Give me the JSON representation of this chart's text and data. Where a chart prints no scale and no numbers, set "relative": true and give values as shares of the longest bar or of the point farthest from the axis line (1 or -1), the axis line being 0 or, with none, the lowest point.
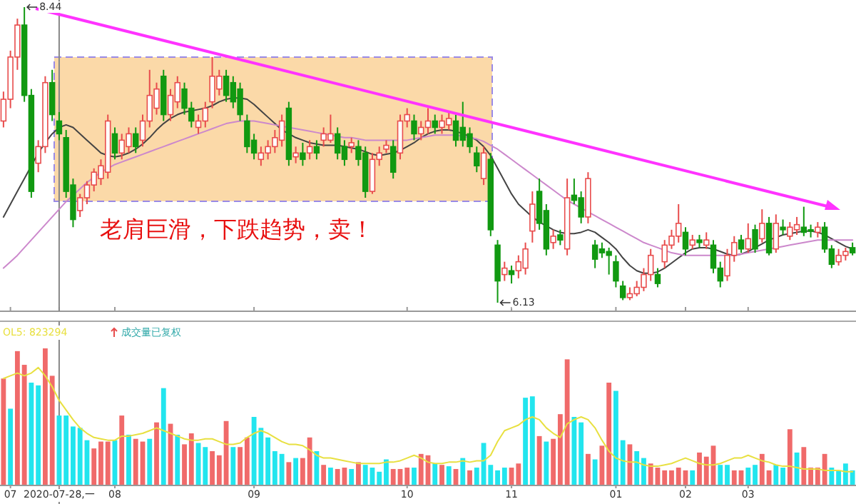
{
  "chart_data": [
    {
      "type": "candlestick",
      "tick_labels": false,
      "categories": [
        null,
        "07",
        null,
        null,
        null,
        null,
        null,
        null,
        "2020-07-28,一",
        null,
        null,
        null,
        null,
        null,
        null,
        null,
        "08",
        null,
        null,
        null,
        null,
        null,
        null,
        null,
        null,
        null,
        null,
        null,
        null,
        null,
        null,
        null,
        null,
        null,
        null,
        null,
        "09",
        null,
        null,
        null,
        null,
        null,
        null,
        null,
        null,
        null,
        null,
        null,
        null,
        null,
        null,
        null,
        null,
        null,
        null,
        null,
        null,
        null,
        "10",
        null,
        null,
        null,
        null,
        null,
        null,
        null,
        null,
        null,
        null,
        null,
        null,
        null,
        null,
        "11",
        null,
        null,
        null,
        null,
        null,
        null,
        null,
        null,
        null,
        null,
        null,
        null,
        null,
        null,
        "01",
        null,
        null,
        null,
        null,
        null,
        null,
        null,
        null,
        null,
        "02",
        null,
        null,
        null,
        null,
        null,
        null,
        null,
        null,
        "03",
        null,
        null,
        null,
        null,
        null,
        null,
        null,
        null,
        null,
        null,
        null,
        null,
        null,
        null,
        null
      ],
      "ohlc": [
        [
          7.55,
          7.78,
          7.5,
          7.72
        ],
        [
          7.72,
          8.1,
          7.65,
          8.05
        ],
        [
          8.05,
          8.35,
          7.95,
          8.3
        ],
        [
          8.3,
          8.44,
          7.7,
          7.75
        ],
        [
          7.75,
          7.8,
          6.95,
          7.0
        ],
        [
          7.22,
          7.4,
          7.15,
          7.35
        ],
        [
          7.35,
          7.9,
          7.3,
          7.85
        ],
        [
          7.85,
          7.95,
          7.55,
          7.6
        ],
        [
          7.55,
          7.62,
          7.4,
          7.45
        ],
        [
          7.42,
          7.48,
          6.95,
          7.0
        ],
        [
          7.05,
          7.1,
          6.72,
          6.78
        ],
        [
          6.85,
          6.98,
          6.8,
          6.95
        ],
        [
          6.95,
          7.08,
          6.9,
          7.05
        ],
        [
          7.05,
          7.18,
          7.0,
          7.15
        ],
        [
          7.1,
          7.25,
          7.05,
          7.2
        ],
        [
          7.15,
          7.6,
          7.1,
          7.55
        ],
        [
          7.45,
          7.5,
          7.25,
          7.3
        ],
        [
          7.3,
          7.45,
          7.25,
          7.4
        ],
        [
          7.35,
          7.5,
          7.3,
          7.45
        ],
        [
          7.45,
          7.5,
          7.3,
          7.35
        ],
        [
          7.4,
          7.6,
          7.35,
          7.55
        ],
        [
          7.55,
          7.95,
          7.5,
          7.75
        ],
        [
          7.65,
          7.85,
          7.6,
          7.8
        ],
        [
          7.9,
          7.95,
          7.55,
          7.6
        ],
        [
          7.6,
          7.8,
          7.55,
          7.75
        ],
        [
          7.7,
          7.9,
          7.65,
          7.85
        ],
        [
          7.8,
          7.85,
          7.6,
          7.65
        ],
        [
          7.65,
          7.7,
          7.5,
          7.55
        ],
        [
          7.5,
          7.6,
          7.45,
          7.55
        ],
        [
          7.55,
          7.7,
          7.5,
          7.65
        ],
        [
          7.7,
          8.05,
          7.65,
          7.9
        ],
        [
          7.8,
          7.95,
          7.75,
          7.9
        ],
        [
          7.9,
          7.95,
          7.7,
          7.75
        ],
        [
          7.85,
          7.9,
          7.65,
          7.7
        ],
        [
          7.8,
          7.85,
          7.55,
          7.6
        ],
        [
          7.55,
          7.6,
          7.3,
          7.35
        ],
        [
          7.4,
          7.45,
          7.25,
          7.3
        ],
        [
          7.25,
          7.35,
          7.2,
          7.3
        ],
        [
          7.3,
          7.4,
          7.25,
          7.35
        ],
        [
          7.35,
          7.48,
          7.3,
          7.42
        ],
        [
          7.4,
          7.6,
          7.35,
          7.55
        ],
        [
          7.65,
          7.7,
          7.2,
          7.25
        ],
        [
          7.27,
          7.35,
          7.22,
          7.3
        ],
        [
          7.3,
          7.38,
          7.2,
          7.25
        ],
        [
          7.3,
          7.4,
          7.25,
          7.35
        ],
        [
          7.35,
          7.4,
          7.25,
          7.3
        ],
        [
          7.4,
          7.5,
          7.35,
          7.45
        ],
        [
          7.4,
          7.6,
          7.38,
          7.45
        ],
        [
          7.45,
          7.5,
          7.25,
          7.3
        ],
        [
          7.35,
          7.4,
          7.2,
          7.25
        ],
        [
          7.35,
          7.42,
          7.3,
          7.38
        ],
        [
          7.35,
          7.4,
          7.2,
          7.25
        ],
        [
          7.3,
          7.35,
          6.95,
          7.0
        ],
        [
          7.0,
          7.3,
          6.98,
          7.25
        ],
        [
          7.25,
          7.35,
          7.2,
          7.3
        ],
        [
          7.33,
          7.4,
          7.3,
          7.36
        ],
        [
          7.35,
          7.4,
          7.1,
          7.15
        ],
        [
          7.3,
          7.6,
          7.25,
          7.55
        ],
        [
          7.55,
          7.65,
          7.5,
          7.6
        ],
        [
          7.55,
          7.6,
          7.4,
          7.45
        ],
        [
          7.45,
          7.55,
          7.4,
          7.5
        ],
        [
          7.5,
          7.65,
          7.45,
          7.55
        ],
        [
          7.55,
          7.6,
          7.45,
          7.5
        ],
        [
          7.5,
          7.6,
          7.45,
          7.55
        ],
        [
          7.52,
          7.62,
          7.48,
          7.57
        ],
        [
          7.55,
          7.6,
          7.35,
          7.4
        ],
        [
          7.5,
          7.7,
          7.35,
          7.4
        ],
        [
          7.45,
          7.5,
          7.3,
          7.35
        ],
        [
          7.3,
          7.35,
          7.15,
          7.2
        ],
        [
          7.1,
          7.35,
          7.05,
          7.3
        ],
        [
          7.25,
          7.3,
          6.65,
          6.7
        ],
        [
          6.58,
          6.62,
          6.13,
          6.3
        ],
        [
          6.35,
          6.45,
          6.3,
          6.4
        ],
        [
          6.38,
          6.42,
          6.28,
          6.35
        ],
        [
          6.38,
          6.5,
          6.32,
          6.45
        ],
        [
          6.4,
          6.6,
          6.35,
          6.55
        ],
        [
          6.69,
          7.0,
          6.6,
          6.9
        ],
        [
          7.0,
          7.1,
          6.7,
          6.75
        ],
        [
          6.85,
          6.9,
          6.5,
          6.55
        ],
        [
          6.6,
          6.7,
          6.55,
          6.65
        ],
        [
          6.66,
          6.7,
          6.58,
          6.62
        ],
        [
          6.55,
          7.1,
          6.5,
          6.95
        ],
        [
          6.97,
          7.1,
          6.9,
          6.93
        ],
        [
          6.95,
          7.0,
          6.75,
          6.8
        ],
        [
          6.8,
          7.15,
          6.75,
          7.1
        ],
        [
          6.58,
          6.62,
          6.4,
          6.47
        ],
        [
          6.55,
          6.6,
          6.48,
          6.52
        ],
        [
          6.53,
          6.56,
          6.35,
          6.5
        ],
        [
          6.45,
          6.5,
          6.25,
          6.3
        ],
        [
          6.26,
          6.3,
          6.15,
          6.17
        ],
        [
          6.17,
          6.25,
          6.15,
          6.2
        ],
        [
          6.2,
          6.3,
          6.18,
          6.25
        ],
        [
          6.25,
          6.4,
          6.22,
          6.35
        ],
        [
          6.35,
          6.55,
          6.3,
          6.5
        ],
        [
          6.35,
          6.4,
          6.25,
          6.28
        ],
        [
          6.45,
          6.62,
          6.4,
          6.58
        ],
        [
          6.58,
          6.7,
          6.55,
          6.65
        ],
        [
          6.65,
          6.9,
          6.6,
          6.75
        ],
        [
          6.68,
          6.72,
          6.5,
          6.55
        ],
        [
          6.58,
          6.66,
          6.55,
          6.62
        ],
        [
          6.62,
          6.66,
          6.56,
          6.6
        ],
        [
          6.58,
          6.68,
          6.55,
          6.62
        ],
        [
          6.58,
          6.62,
          6.36,
          6.4
        ],
        [
          6.4,
          6.45,
          6.25,
          6.3
        ],
        [
          6.34,
          6.55,
          6.3,
          6.5
        ],
        [
          6.5,
          6.65,
          6.45,
          6.6
        ],
        [
          6.62,
          6.66,
          6.52,
          6.55
        ],
        [
          6.55,
          6.75,
          6.52,
          6.63
        ],
        [
          6.7,
          6.74,
          6.52,
          6.55
        ],
        [
          6.63,
          6.86,
          6.6,
          6.75
        ],
        [
          6.75,
          6.8,
          6.5,
          6.52
        ],
        [
          6.55,
          6.82,
          6.52,
          6.75
        ],
        [
          6.72,
          6.78,
          6.66,
          6.7
        ],
        [
          6.65,
          6.76,
          6.62,
          6.72
        ],
        [
          6.7,
          6.8,
          6.66,
          6.74
        ],
        [
          6.72,
          6.88,
          6.65,
          6.68
        ],
        [
          6.7,
          6.74,
          6.64,
          6.69
        ],
        [
          6.68,
          6.76,
          6.64,
          6.72
        ],
        [
          6.72,
          6.76,
          6.52,
          6.55
        ],
        [
          6.55,
          6.58,
          6.4,
          6.43
        ],
        [
          6.45,
          6.55,
          6.42,
          6.5
        ],
        [
          6.5,
          6.56,
          6.46,
          6.53
        ],
        [
          6.56,
          6.6,
          6.5,
          6.52
        ]
      ],
      "colors": [
        "#e84c4c",
        "#e84c4c",
        "#e84c4c",
        "#119911",
        "#119911",
        "#e84c4c",
        "#e84c4c",
        "#119911",
        "#119911",
        "#119911",
        "#119911",
        "#e84c4c",
        "#e84c4c",
        "#e84c4c",
        "#e84c4c",
        "#e84c4c",
        "#119911",
        "#e84c4c",
        "#e84c4c",
        "#119911",
        "#e84c4c",
        "#e84c4c",
        "#e84c4c",
        "#119911",
        "#e84c4c",
        "#e84c4c",
        "#119911",
        "#119911",
        "#e84c4c",
        "#e84c4c",
        "#e84c4c",
        "#e84c4c",
        "#119911",
        "#119911",
        "#119911",
        "#119911",
        "#119911",
        "#e84c4c",
        "#e84c4c",
        "#e84c4c",
        "#e84c4c",
        "#119911",
        "#e84c4c",
        "#119911",
        "#e84c4c",
        "#119911",
        "#e84c4c",
        "#e84c4c",
        "#119911",
        "#119911",
        "#e84c4c",
        "#119911",
        "#119911",
        "#e84c4c",
        "#e84c4c",
        "#e84c4c",
        "#119911",
        "#e84c4c",
        "#e84c4c",
        "#119911",
        "#e84c4c",
        "#e84c4c",
        "#119911",
        "#e84c4c",
        "#e84c4c",
        "#119911",
        "#119911",
        "#119911",
        "#119911",
        "#e84c4c",
        "#119911",
        "#119911",
        "#e84c4c",
        "#119911",
        "#e84c4c",
        "#e84c4c",
        "#e84c4c",
        "#119911",
        "#119911",
        "#e84c4c",
        "#119911",
        "#e84c4c",
        "#119911",
        "#119911",
        "#e84c4c",
        "#119911",
        "#119911",
        "#119911",
        "#119911",
        "#119911",
        "#e84c4c",
        "#e84c4c",
        "#e84c4c",
        "#e84c4c",
        "#119911",
        "#e84c4c",
        "#e84c4c",
        "#e84c4c",
        "#119911",
        "#e84c4c",
        "#119911",
        "#e84c4c",
        "#119911",
        "#119911",
        "#e84c4c",
        "#e84c4c",
        "#119911",
        "#e84c4c",
        "#119911",
        "#e84c4c",
        "#119911",
        "#e84c4c",
        "#119911",
        "#e84c4c",
        "#e84c4c",
        "#119911",
        "#119911",
        "#e84c4c",
        "#119911",
        "#119911",
        "#e84c4c",
        "#e84c4c",
        "#119911"
      ],
      "series": [
        {
          "type": "line",
          "color": "#444444",
          "values": [
            6.8,
            6.9,
            7.0,
            7.1,
            7.2,
            7.3,
            7.38,
            7.45,
            7.5,
            7.52,
            7.5,
            7.45,
            7.4,
            7.35,
            7.3,
            7.28,
            7.27,
            7.28,
            7.3,
            7.33,
            7.37,
            7.42,
            7.48,
            7.53,
            7.57,
            7.6,
            7.62,
            7.63,
            7.64,
            7.65,
            7.67,
            7.7,
            7.72,
            7.73,
            7.73,
            7.72,
            7.68,
            7.63,
            7.58,
            7.53,
            7.48,
            7.45,
            7.42,
            7.4,
            7.38,
            7.37,
            7.36,
            7.36,
            7.36,
            7.35,
            7.34,
            7.33,
            7.31,
            7.29,
            7.28,
            7.29,
            7.3,
            7.32,
            7.35,
            7.38,
            7.42,
            7.45,
            7.47,
            7.48,
            7.48,
            7.47,
            7.45,
            7.43,
            7.4,
            7.35,
            7.28,
            7.18,
            7.08,
            6.98,
            6.9,
            6.85,
            6.8,
            6.76,
            6.73,
            6.7,
            6.68,
            6.67,
            6.67,
            6.68,
            6.7,
            6.68,
            6.64,
            6.6,
            6.55,
            6.48,
            6.42,
            6.38,
            6.36,
            6.36,
            6.37,
            6.4,
            6.44,
            6.48,
            6.52,
            6.55,
            6.56,
            6.56,
            6.55,
            6.53,
            6.51,
            6.5,
            6.51,
            6.53,
            6.56,
            6.59,
            6.62,
            6.64,
            6.66,
            6.67,
            6.68,
            6.69,
            6.69,
            6.68,
            6.66,
            6.63,
            6.6,
            6.57,
            6.55
          ]
        },
        {
          "type": "line",
          "color": "#cc88cc",
          "values": [
            6.4,
            6.45,
            6.5,
            6.56,
            6.62,
            6.68,
            6.74,
            6.8,
            6.86,
            6.92,
            6.97,
            7.02,
            7.07,
            7.11,
            7.15,
            7.18,
            7.21,
            7.23,
            7.25,
            7.27,
            7.29,
            7.31,
            7.33,
            7.35,
            7.37,
            7.39,
            7.41,
            7.43,
            7.45,
            7.47,
            7.49,
            7.51,
            7.53,
            7.54,
            7.55,
            7.55,
            7.55,
            7.54,
            7.53,
            7.52,
            7.51,
            7.5,
            7.49,
            7.48,
            7.47,
            7.46,
            7.45,
            7.44,
            7.43,
            7.42,
            7.42,
            7.41,
            7.4,
            7.4,
            7.4,
            7.4,
            7.4,
            7.4,
            7.4,
            7.41,
            7.42,
            7.43,
            7.44,
            7.44,
            7.44,
            7.44,
            7.43,
            7.42,
            7.41,
            7.39,
            7.36,
            7.33,
            7.29,
            7.25,
            7.21,
            7.17,
            7.13,
            7.09,
            7.05,
            7.01,
            6.97,
            6.93,
            6.9,
            6.87,
            6.84,
            6.81,
            6.78,
            6.75,
            6.72,
            6.69,
            6.66,
            6.63,
            6.6,
            6.58,
            6.56,
            6.54,
            6.52,
            6.51,
            6.5,
            6.5,
            6.5,
            6.5,
            6.5,
            6.5,
            6.5,
            6.5,
            6.51,
            6.52,
            6.53,
            6.54,
            6.55,
            6.56,
            6.57,
            6.58,
            6.59,
            6.6,
            6.61,
            6.62,
            6.62,
            6.62,
            6.62,
            6.62,
            6.62
          ]
        }
      ],
      "ref_lines": [
        {
          "axis": "x",
          "value": "2020-07-28,一",
          "color": "#888888"
        }
      ],
      "annotations": [
        {
          "text": "8.44",
          "y": 8.44
        },
        {
          "text": "6.13",
          "y": 6.13
        },
        "老肩巨滑，下跌趋势，卖！"
      ]
    },
    {
      "type": "bar",
      "relative": true,
      "categories": [
        null,
        "07",
        null,
        null,
        null,
        null,
        null,
        null,
        "2020-07-28,一",
        null,
        null,
        null,
        null,
        null,
        null,
        null,
        "08",
        null,
        null,
        null,
        null,
        null,
        null,
        null,
        null,
        null,
        null,
        null,
        null,
        null,
        null,
        null,
        null,
        null,
        null,
        null,
        "09",
        null,
        null,
        null,
        null,
        null,
        null,
        null,
        null,
        null,
        null,
        null,
        null,
        null,
        null,
        null,
        null,
        null,
        null,
        null,
        null,
        null,
        "10",
        null,
        null,
        null,
        null,
        null,
        null,
        null,
        null,
        null,
        null,
        null,
        null,
        null,
        null,
        "11",
        null,
        null,
        null,
        null,
        null,
        null,
        null,
        null,
        null,
        null,
        null,
        null,
        null,
        null,
        "01",
        null,
        null,
        null,
        null,
        null,
        null,
        null,
        null,
        null,
        "02",
        null,
        null,
        null,
        null,
        null,
        null,
        null,
        null,
        "03",
        null,
        null,
        null,
        null,
        null,
        null,
        null,
        null,
        null,
        null,
        null,
        null,
        null,
        null,
        null
      ],
      "values": [
        0.78,
        0.56,
        0.98,
        0.88,
        0.75,
        0.73,
        1,
        0.8,
        0.51,
        0.51,
        0.43,
        0.42,
        0.33,
        0.27,
        0.32,
        0.32,
        0.33,
        0.51,
        0.37,
        0.34,
        0.32,
        0.34,
        0.46,
        0.71,
        0.45,
        0.37,
        0.3,
        0.38,
        0.31,
        0.28,
        0.25,
        0.22,
        0.47,
        0.28,
        0.28,
        0.35,
        0.5,
        0.42,
        0.35,
        0.25,
        0.23,
        0.17,
        0.2,
        0.2,
        0.35,
        0.25,
        0.15,
        0.13,
        0.12,
        0.13,
        0.12,
        0.17,
        0.15,
        0.13,
        0.1,
        0.19,
        0.12,
        0.12,
        0.13,
        0.13,
        0.23,
        0.22,
        0.16,
        0.15,
        0.14,
        0.12,
        0.2,
        0.11,
        0.13,
        0.31,
        0.15,
        0.11,
        0.13,
        0.13,
        0.16,
        0.64,
        0.65,
        0.36,
        0.32,
        0.34,
        0.52,
        0.92,
        0.5,
        0.46,
        0.23,
        0.19,
        0.29,
        0.75,
        0.69,
        0.33,
        0.3,
        0.25,
        0.2,
        0.16,
        0.13,
        0.11,
        0.11,
        0.13,
        0.11,
        0.11,
        0.24,
        0.21,
        0.29,
        0.15,
        0.15,
        0.11,
        0.11,
        0.13,
        0.15,
        0.23,
        0.11,
        0.15,
        0.13,
        0.41,
        0.24,
        0.28,
        0.13,
        0.13,
        0.23,
        0.13,
        0.11,
        0.16,
        0.11
      ],
      "colors": [
        "#f06a6a",
        "#22e5ee",
        "#f06a6a",
        "#f06a6a",
        "#22e5ee",
        "#22e5ee",
        "#f06a6a",
        "#f06a6a",
        "#22e5ee",
        "#22e5ee",
        "#22e5ee",
        "#22e5ee",
        "#22e5ee",
        "#f06a6a",
        "#f06a6a",
        "#f06a6a",
        "#22e5ee",
        "#f06a6a",
        "#22e5ee",
        "#f06a6a",
        "#f06a6a",
        "#22e5ee",
        "#f06a6a",
        "#22e5ee",
        "#f06a6a",
        "#22e5ee",
        "#f06a6a",
        "#f06a6a",
        "#22e5ee",
        "#22e5ee",
        "#f06a6a",
        "#f06a6a",
        "#f06a6a",
        "#22e5ee",
        "#f06a6a",
        "#f06a6a",
        "#22e5ee",
        "#22e5ee",
        "#22e5ee",
        "#22e5ee",
        "#22e5ee",
        "#f06a6a",
        "#22e5ee",
        "#f06a6a",
        "#f06a6a",
        "#22e5ee",
        "#f06a6a",
        "#22e5ee",
        "#f06a6a",
        "#f06a6a",
        "#22e5ee",
        "#f06a6a",
        "#22e5ee",
        "#22e5ee",
        "#22e5ee",
        "#22e5ee",
        "#f06a6a",
        "#f06a6a",
        "#f06a6a",
        "#22e5ee",
        "#f06a6a",
        "#f06a6a",
        "#22e5ee",
        "#f06a6a",
        "#22e5ee",
        "#f06a6a",
        "#22e5ee",
        "#f06a6a",
        "#22e5ee",
        "#22e5ee",
        "#22e5ee",
        "#22e5ee",
        "#22e5ee",
        "#f06a6a",
        "#f06a6a",
        "#22e5ee",
        "#22e5ee",
        "#f06a6a",
        "#22e5ee",
        "#f06a6a",
        "#f06a6a",
        "#f06a6a",
        "#22e5ee",
        "#22e5ee",
        "#f06a6a",
        "#22e5ee",
        "#f06a6a",
        "#f06a6a",
        "#22e5ee",
        "#22e5ee",
        "#f06a6a",
        "#22e5ee",
        "#22e5ee",
        "#f06a6a",
        "#f06a6a",
        "#f06a6a",
        "#f06a6a",
        "#f06a6a",
        "#f06a6a",
        "#22e5ee",
        "#f06a6a",
        "#f06a6a",
        "#f06a6a",
        "#22e5ee",
        "#22e5ee",
        "#f06a6a",
        "#f06a6a",
        "#22e5ee",
        "#22e5ee",
        "#f06a6a",
        "#f06a6a",
        "#22e5ee",
        "#22e5ee",
        "#f06a6a",
        "#22e5ee",
        "#f06a6a",
        "#f06a6a",
        "#f06a6a",
        "#f06a6a",
        "#22e5ee",
        "#22e5ee",
        "#22e5ee",
        "#22e5ee"
      ],
      "series": [
        {
          "type": "line",
          "name": "OL5: 823294",
          "color": "#e8e040",
          "values": [
            0.78,
            0.8,
            0.82,
            0.8,
            0.82,
            0.86,
            0.8,
            0.72,
            0.62,
            0.55,
            0.48,
            0.42,
            0.38,
            0.35,
            0.34,
            0.33,
            0.33,
            0.36,
            0.36,
            0.37,
            0.38,
            0.4,
            0.42,
            0.4,
            0.38,
            0.36,
            0.34,
            0.33,
            0.33,
            0.34,
            0.34,
            0.32,
            0.3,
            0.3,
            0.31,
            0.35,
            0.38,
            0.4,
            0.38,
            0.35,
            0.32,
            0.3,
            0.3,
            0.29,
            0.26,
            0.22,
            0.2,
            0.2,
            0.19,
            0.18,
            0.17,
            0.16,
            0.16,
            0.16,
            0.16,
            0.17,
            0.17,
            0.18,
            0.2,
            0.22,
            0.2,
            0.17,
            0.16,
            0.16,
            0.17,
            0.17,
            0.18,
            0.17,
            0.18,
            0.18,
            0.22,
            0.32,
            0.4,
            0.42,
            0.44,
            0.48,
            0.5,
            0.48,
            0.42,
            0.38,
            0.35,
            0.45,
            0.48,
            0.5,
            0.48,
            0.42,
            0.33,
            0.25,
            0.2,
            0.18,
            0.17,
            0.17,
            0.15,
            0.14,
            0.14,
            0.15,
            0.16,
            0.18,
            0.2,
            0.18,
            0.16,
            0.15,
            0.15,
            0.16,
            0.18,
            0.2,
            0.2,
            0.22,
            0.2,
            0.18,
            0.17,
            0.15,
            0.14,
            0.14,
            0.13,
            0.12,
            0.12,
            0.12,
            0.11,
            0.11,
            0.11,
            0.1,
            0.1
          ]
        }
      ],
      "ref_lines": [
        {
          "axis": "x",
          "value": "2020-07-28,一",
          "color": "#888888"
        }
      ],
      "annotations": [
        "成交量已复权"
      ]
    }
  ]
}
